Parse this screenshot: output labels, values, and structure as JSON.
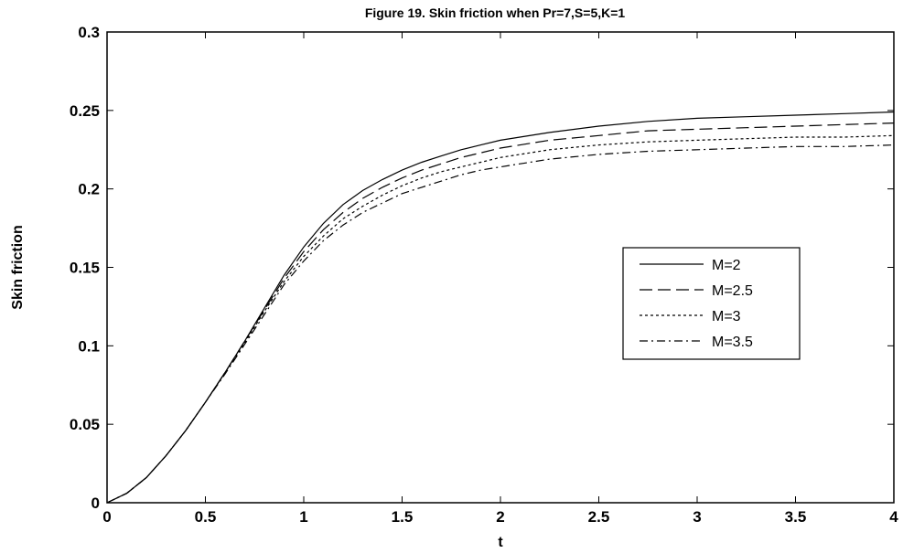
{
  "chart_data": {
    "type": "line",
    "title": "Figure 19. Skin friction when Pr=7,S=5,K=1",
    "xlabel": "t",
    "ylabel": "Skin friction",
    "xlim": [
      0,
      4
    ],
    "ylim": [
      0,
      0.3
    ],
    "x_ticks": [
      "0",
      "0.5",
      "1",
      "1.5",
      "2",
      "2.5",
      "3",
      "3.5",
      "4"
    ],
    "y_ticks": [
      "0",
      "0.05",
      "0.1",
      "0.15",
      "0.2",
      "0.25",
      "0.3"
    ],
    "grid": false,
    "legend_position": "right",
    "x": [
      0,
      0.1,
      0.2,
      0.3,
      0.4,
      0.5,
      0.6,
      0.7,
      0.8,
      0.9,
      1.0,
      1.1,
      1.2,
      1.3,
      1.4,
      1.5,
      1.6,
      1.7,
      1.8,
      1.9,
      2.0,
      2.25,
      2.5,
      2.75,
      3.0,
      3.25,
      3.5,
      3.75,
      4.0
    ],
    "series": [
      {
        "name": "M=2",
        "dash": "solid",
        "values": [
          0,
          0.006,
          0.016,
          0.03,
          0.046,
          0.064,
          0.083,
          0.103,
          0.124,
          0.145,
          0.163,
          0.178,
          0.19,
          0.199,
          0.206,
          0.212,
          0.217,
          0.221,
          0.225,
          0.228,
          0.231,
          0.236,
          0.24,
          0.243,
          0.245,
          0.246,
          0.247,
          0.248,
          0.249
        ]
      },
      {
        "name": "M=2.5",
        "dash": "long-dash",
        "values": [
          0,
          0.006,
          0.016,
          0.03,
          0.046,
          0.064,
          0.083,
          0.103,
          0.123,
          0.143,
          0.16,
          0.174,
          0.185,
          0.194,
          0.201,
          0.207,
          0.212,
          0.216,
          0.22,
          0.223,
          0.226,
          0.231,
          0.234,
          0.237,
          0.238,
          0.239,
          0.24,
          0.241,
          0.242
        ]
      },
      {
        "name": "M=3",
        "dash": "dotted",
        "values": [
          0,
          0.006,
          0.016,
          0.03,
          0.046,
          0.064,
          0.083,
          0.102,
          0.122,
          0.141,
          0.157,
          0.17,
          0.181,
          0.189,
          0.196,
          0.202,
          0.207,
          0.211,
          0.214,
          0.217,
          0.22,
          0.225,
          0.228,
          0.23,
          0.231,
          0.232,
          0.233,
          0.233,
          0.234
        ]
      },
      {
        "name": "M=3.5",
        "dash": "dash-dot",
        "values": [
          0,
          0.006,
          0.016,
          0.03,
          0.046,
          0.064,
          0.082,
          0.101,
          0.12,
          0.139,
          0.154,
          0.167,
          0.177,
          0.185,
          0.191,
          0.197,
          0.201,
          0.205,
          0.209,
          0.212,
          0.214,
          0.219,
          0.222,
          0.224,
          0.225,
          0.226,
          0.227,
          0.227,
          0.228
        ]
      }
    ]
  }
}
